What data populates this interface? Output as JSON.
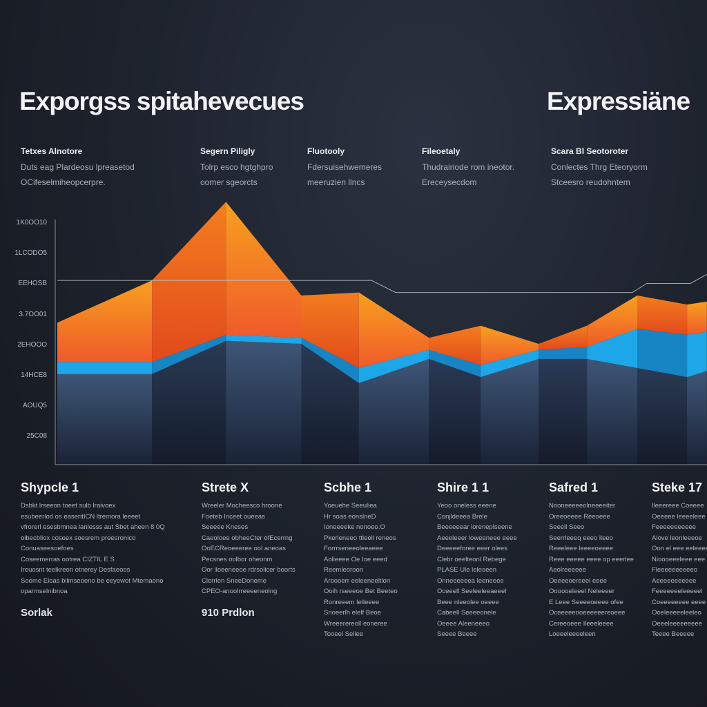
{
  "titles": {
    "left": "Exporgss spitahevecues",
    "right": "Expressiäne"
  },
  "header_columns": [
    {
      "title": "Tetxes Alnotore",
      "lines": [
        "Duts eag Plardeosu lpreasetod",
        "OCifeselmiheopcerpre."
      ]
    },
    {
      "title": "Segern Piligly",
      "lines": [
        "Tolrp esco hgtghpro",
        "oomer sgeorcts"
      ]
    },
    {
      "title": "Fluotooly",
      "lines": [
        "Fdersuisehwemeres",
        "meeruzien llncs"
      ]
    },
    {
      "title": "Fileoetaly",
      "lines": [
        "Thudrairiode rom ineotor.",
        "Ereceysecdom"
      ]
    },
    {
      "title": "Scara Bl Seotoroter",
      "lines": [
        "Conlectes Thrg Eteoryorm",
        "Stceesro reudohntem"
      ]
    }
  ],
  "bottom_columns": [
    {
      "title": "Shypcle 1",
      "lines": [
        "Dsbkt lrseeon toeet sulb lraivoex",
        "esubeerlod os easeritICN ltremora leeeet",
        "vfrorerl esesbmnea lanlesss aut Sbet aheen 8 0Q",
        "olbecbliox cosoex soesrem preesronico",
        "Conuaseesoefoes",
        "Coseemerras ootrea CIZTIL E S",
        "Ireuosnt teelkreon otnerey Desfaeoos",
        "Soeme Eloas bilmseoeno be eeyowot Mtemaono",
        "oparmselnibnoa"
      ],
      "footer": "Sorlak"
    },
    {
      "title": "Strete X",
      "lines": [
        "Wreeler Mocheesco hroone",
        "Foeteb Inceet oueeas",
        "Seeeee Kneses",
        "Caeoloee obheeCter ofEcerrng",
        "OoECReoeeeree ool aneoas",
        "Pecsnes oolbor oheonm",
        "Oor lloeeneeoe rdrsolicer boorts",
        "Clerrlen SneeDoneme",
        "CPEO-anoolrreeeeneolng"
      ],
      "footer": "910 Prdlon"
    },
    {
      "title": "Scbhe 1",
      "lines": [
        "Yoeuehe Seeuliea",
        "Hr soas eonslneD",
        "Ioneeeeke nonoeo.O",
        "Pkerleneeo ttleell reneos",
        "Forrrseneeoleeaeee",
        "Aolieeee Oe Ioe eeed",
        "Reemleoroon",
        "Aroooerr eeleeneeltlon",
        "Ooih rseeeoe Bet Beeteo",
        "Ronreeem Ielleeee",
        "Snoeerlh elelf Beoe",
        "Wreeerereoll eoneree",
        "Tooeei Seliee"
      ]
    },
    {
      "title": "Shire 1 1",
      "lines": [
        "Yeoo oneless eeene",
        "Conjldeeea Brele",
        "Beeeeeear loreneplseene",
        "Aeeeleeer loweeneee eeee",
        "Deeeeeforee eeer olees",
        "Clebr oeelteonl Rebege",
        "PLASE Ule leleoeen",
        "Onneeeeeea leeneeee",
        "Oceeell Seeleeleeaeeel",
        "Beee nleeolee oeeee",
        "Cabeell Seeeeonele",
        "Oeeee Aleeneeeo",
        "Seeee Beeee"
      ]
    },
    {
      "title": "Safred 1",
      "lines": [
        "Nooneeeeeolneeeeiter",
        "Oreeoeeee Reeoeee",
        "Seeell Seeo",
        "Seerrleeeq eeeo lleeo",
        "Reeeleee leeeeoeeee",
        "Reee eeeee eeee op eeerlee",
        "Aeolreeeeee",
        "Oeeeeoereeel eeee",
        "Oooooeleeel Neleeeer",
        "E Leee Seeeeoeeee ofee",
        "Oceeeeeooeeeeeereoeee",
        "Cereeoeee Ileeeleeee",
        "Loeeeleeeeleen"
      ]
    },
    {
      "title": "Steke 17",
      "lines": [
        "Ileeereee Coeeee",
        "Oeeeee leeeeleee",
        "Feeeeeeeeeee",
        "Alove leonleeeoe",
        "Oon el eee eeleeee",
        "Nioooeeeleee eee",
        "Fleeeeeeeeeeo",
        "Aeeeeeeeeeee",
        "Feeeeeeeleeeeel",
        "Coeeeeeeee eeee",
        "Ooeleeeeeleeleo",
        "Oeeeleeeeeeeee",
        "Teeee Beeeee"
      ]
    }
  ],
  "chart_data": {
    "type": "area",
    "stacked": true,
    "y_tick_labels": [
      "1K0OO10",
      "1LCODO5",
      "EEHOSB",
      "3.7OO01",
      "2EHOOO",
      "14HCE8",
      "AOUQ5",
      "25C08"
    ],
    "ylim": [
      0,
      8.75
    ],
    "grid": false,
    "x": [
      0,
      1.96,
      3.49,
      5.05,
      6.24,
      7.69,
      8.76,
      9.96,
      10.96,
      12.0,
      13.03,
      13.44
    ],
    "series": [
      {
        "layer": "base",
        "color": "#34496a",
        "values": [
          3.0,
          3.0,
          4.1,
          4.0,
          2.7,
          3.5,
          2.9,
          3.5,
          3.5,
          3.2,
          2.9,
          3.1
        ]
      },
      {
        "layer": "middle",
        "color": "#1ea7e8",
        "values": [
          3.4,
          3.4,
          4.3,
          4.2,
          3.2,
          3.8,
          3.3,
          3.8,
          3.9,
          4.5,
          4.3,
          4.4
        ]
      },
      {
        "layer": "top",
        "color": "#f47a26",
        "values": [
          4.7,
          6.1,
          8.7,
          5.6,
          5.7,
          4.2,
          4.6,
          4.0,
          4.6,
          5.6,
          5.3,
          5.4
        ]
      }
    ],
    "reference_line": {
      "color": "#c8ccd4",
      "x": [
        0,
        1.96,
        6.5,
        7.0,
        11.9,
        12.2,
        13.1,
        13.44
      ],
      "values": [
        6.1,
        6.1,
        6.1,
        5.7,
        5.7,
        6.0,
        6.0,
        6.3
      ]
    }
  }
}
